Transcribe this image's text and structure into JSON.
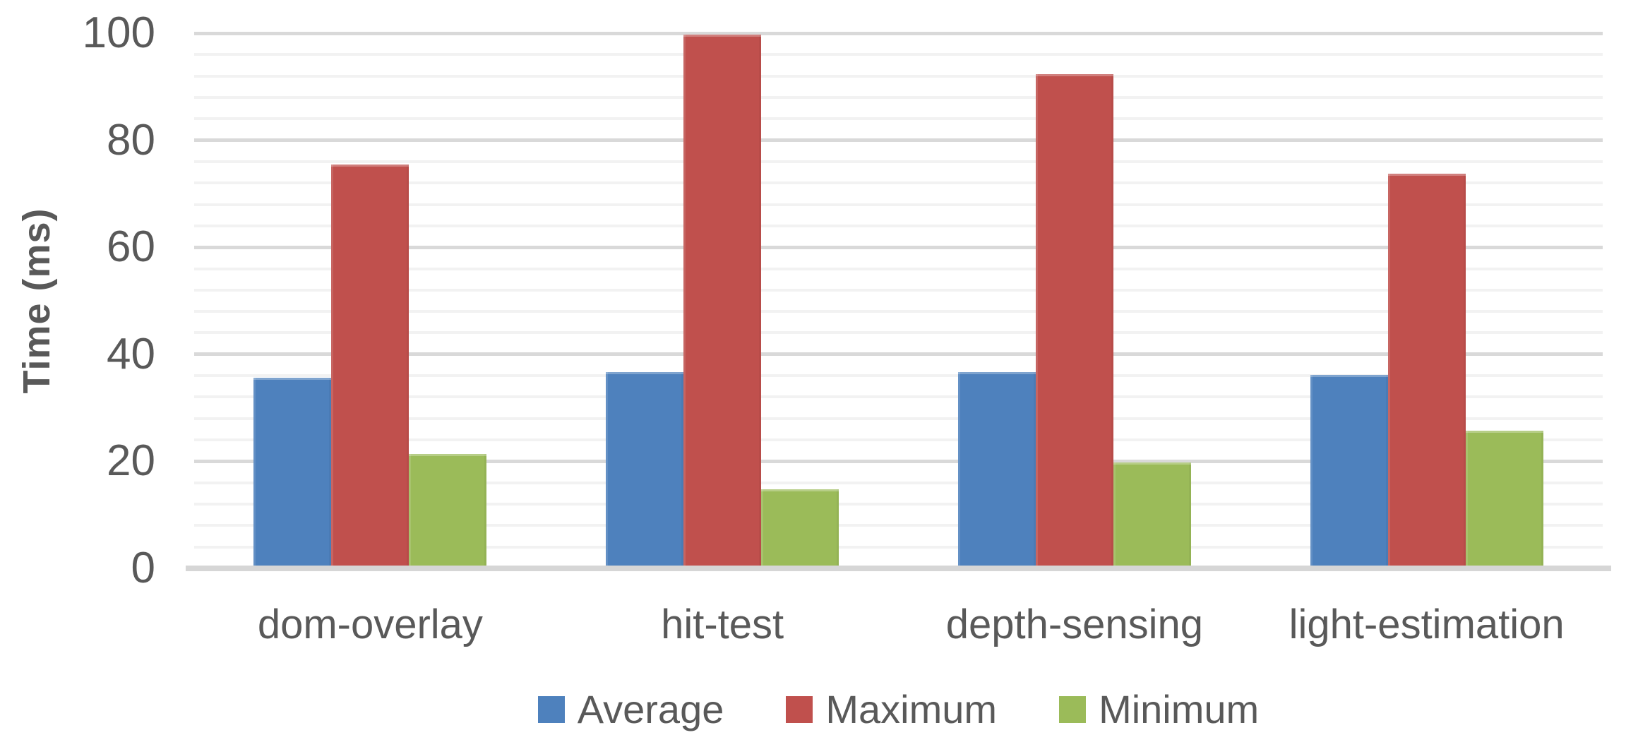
{
  "chart_data": {
    "type": "bar",
    "title": "",
    "xlabel": "",
    "ylabel": "Time (ms)",
    "categories": [
      "dom-overlay",
      "hit-test",
      "depth-sensing",
      "light-estimation"
    ],
    "series": [
      {
        "name": "Average",
        "color": "#4E81BD",
        "values": [
          35.6,
          36.7,
          36.7,
          36.1
        ]
      },
      {
        "name": "Maximum",
        "color": "#C0504D",
        "values": [
          75.5,
          99.8,
          92.3,
          73.7
        ]
      },
      {
        "name": "Minimum",
        "color": "#9BBB59",
        "values": [
          21.4,
          14.8,
          19.8,
          25.7
        ]
      }
    ],
    "ylim": [
      0,
      100
    ],
    "yticks": [
      0,
      20,
      40,
      60,
      80,
      100
    ],
    "grid": {
      "minor_step": 4,
      "major_step": 20,
      "minor_color": "#F2F2F2",
      "major_color": "#D9D9D9",
      "baseline_color": "#D6D6D6"
    },
    "legend_position": "bottom",
    "text_color": "#595959"
  }
}
